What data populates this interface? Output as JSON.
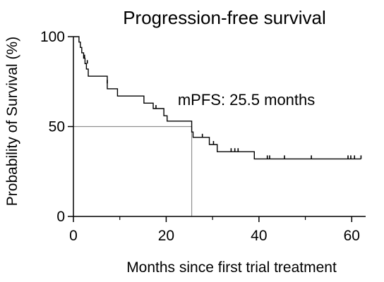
{
  "chart_data": {
    "type": "line",
    "title": "Progression-free survival",
    "xlabel": "Months since first trial treatment",
    "ylabel": "Probability of Survival (%)",
    "xlim": [
      0,
      63
    ],
    "ylim": [
      0,
      100
    ],
    "x_ticks": [
      0,
      20,
      40,
      60
    ],
    "x_tick_labels": [
      "0",
      "20",
      "40",
      "60"
    ],
    "x_minor_ticks": [
      10,
      30,
      50
    ],
    "y_ticks": [
      0,
      50,
      100
    ],
    "y_tick_labels": [
      "0",
      "50",
      "100"
    ],
    "grid": false,
    "series": [
      {
        "color": "#000000",
        "steps": [
          [
            0,
            100
          ],
          [
            1.2,
            100
          ],
          [
            1.2,
            97
          ],
          [
            1.5,
            97
          ],
          [
            1.5,
            94
          ],
          [
            1.8,
            94
          ],
          [
            1.8,
            91
          ],
          [
            2.2,
            91
          ],
          [
            2.2,
            88
          ],
          [
            2.5,
            88
          ],
          [
            2.5,
            85
          ],
          [
            2.8,
            85
          ],
          [
            2.8,
            82
          ],
          [
            3.2,
            82
          ],
          [
            3.2,
            78
          ],
          [
            7.3,
            78
          ],
          [
            7.3,
            71
          ],
          [
            9.5,
            71
          ],
          [
            9.5,
            67
          ],
          [
            15.2,
            67
          ],
          [
            15.2,
            63
          ],
          [
            17.2,
            63
          ],
          [
            17.2,
            60
          ],
          [
            19.5,
            60
          ],
          [
            19.5,
            56
          ],
          [
            20.2,
            56
          ],
          [
            20.2,
            53
          ],
          [
            25.5,
            53
          ],
          [
            25.5,
            47
          ],
          [
            25.8,
            47
          ],
          [
            25.8,
            44
          ],
          [
            29.3,
            44
          ],
          [
            29.3,
            40
          ],
          [
            31,
            40
          ],
          [
            31,
            36
          ],
          [
            39,
            36
          ],
          [
            39,
            32
          ],
          [
            62,
            32
          ]
        ],
        "censored": [
          [
            2.4,
            88
          ],
          [
            3.0,
            85
          ],
          [
            7.3,
            74
          ],
          [
            17.8,
            60
          ],
          [
            27.8,
            44
          ],
          [
            30.2,
            40
          ],
          [
            34.0,
            36
          ],
          [
            34.8,
            36
          ],
          [
            35.5,
            36
          ],
          [
            41.8,
            32
          ],
          [
            42.3,
            32
          ],
          [
            45.5,
            32
          ],
          [
            51.3,
            32
          ],
          [
            59.2,
            32
          ],
          [
            59.8,
            32
          ],
          [
            60.6,
            32
          ],
          [
            62,
            32
          ]
        ]
      }
    ],
    "reference_lines": {
      "horizontal_at_y": 50,
      "vertical_at_x": 25.5,
      "color": "#909090"
    },
    "annotations": [
      {
        "text": "mPFS: 25.5 months",
        "x": 22.5,
        "y": 62
      }
    ]
  }
}
